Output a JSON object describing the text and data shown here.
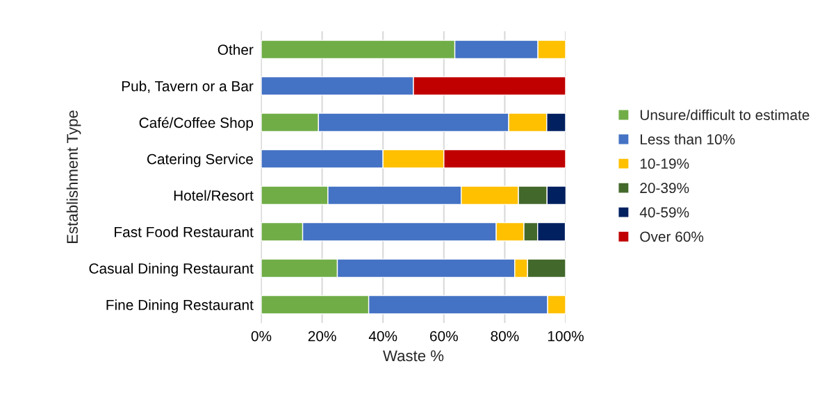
{
  "chart_data": {
    "type": "bar",
    "orientation": "horizontal",
    "stacked": true,
    "categories": [
      "Other",
      "Pub, Tavern or a Bar",
      "Café/Coffee Shop",
      "Catering Service",
      "Hotel/Resort",
      "Fast Food Restaurant",
      "Casual Dining Restaurant",
      "Fine Dining Restaurant"
    ],
    "series": [
      {
        "name": "Unsure/difficult to estimate",
        "color": "#70ad47",
        "values": [
          63.6,
          null,
          18.8,
          null,
          21.9,
          13.6,
          25,
          35.3
        ]
      },
      {
        "name": "Less than 10%",
        "color": "#4472c4",
        "values": [
          27.3,
          50,
          62.5,
          40,
          43.8,
          63.6,
          58.3,
          58.8
        ]
      },
      {
        "name": "10-19%",
        "color": "#ffc000",
        "values": [
          9.1,
          null,
          12.5,
          20,
          18.8,
          9.1,
          4.2,
          5.9
        ]
      },
      {
        "name": "20-39%",
        "color": "#43682b",
        "values": [
          null,
          null,
          null,
          null,
          9.4,
          4.5,
          12.5,
          null
        ]
      },
      {
        "name": "40-59%",
        "color": "#002060",
        "values": [
          null,
          null,
          6.2,
          null,
          6.2,
          9.1,
          null,
          null
        ]
      },
      {
        "name": "Over 60%",
        "color": "#c00000",
        "values": [
          null,
          50,
          null,
          40,
          null,
          null,
          null,
          null
        ]
      }
    ],
    "xlabel": "Waste %",
    "ylabel": "Establishment Type",
    "xlim": [
      0,
      100
    ],
    "xticks": [
      {
        "value": 0,
        "label": "0%"
      },
      {
        "value": 20,
        "label": "20%"
      },
      {
        "value": 40,
        "label": "40%"
      },
      {
        "value": 60,
        "label": "60%"
      },
      {
        "value": 80,
        "label": "80%"
      },
      {
        "value": 100,
        "label": "100%"
      }
    ],
    "grid": "x",
    "legend": "right"
  }
}
